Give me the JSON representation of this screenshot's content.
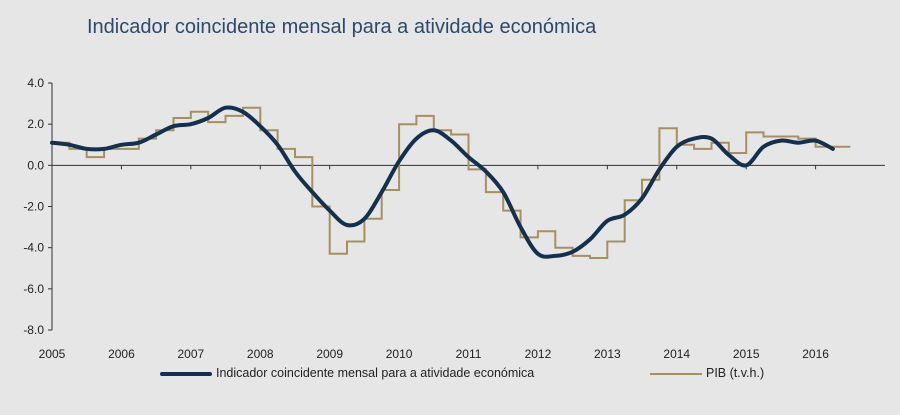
{
  "chart_data": {
    "type": "line",
    "title": "Indicador coincidente mensal para a atividade económica",
    "xlabel": "",
    "ylabel": "",
    "xlim": [
      2005,
      2017
    ],
    "ylim": [
      -8.0,
      4.0
    ],
    "ytick_labels": [
      "4.0",
      "2.0",
      "0.0",
      "-2.0",
      "-4.0",
      "-6.0",
      "-8.0"
    ],
    "ytick_values": [
      4,
      2,
      0,
      -2,
      -4,
      -6,
      -8
    ],
    "xtick_labels": [
      "2005",
      "2006",
      "2007",
      "2008",
      "2009",
      "2010",
      "2011",
      "2012",
      "2013",
      "2014",
      "2015",
      "2016"
    ],
    "xtick_values": [
      2005,
      2006,
      2007,
      2008,
      2009,
      2010,
      2011,
      2012,
      2013,
      2014,
      2015,
      2016
    ],
    "grid": false,
    "legend_position": "bottom",
    "colors": {
      "indicator": "#12304f",
      "pib": "#a8905c",
      "background": "#e6e6e6",
      "title": "#2b4a6b"
    },
    "series": [
      {
        "name": "Indicador coincidente mensal para a atividade económica",
        "style": "smooth",
        "x": [
          2005.0,
          2005.25,
          2005.5,
          2005.75,
          2006.0,
          2006.25,
          2006.5,
          2006.75,
          2007.0,
          2007.25,
          2007.5,
          2007.75,
          2008.0,
          2008.25,
          2008.5,
          2008.75,
          2009.0,
          2009.25,
          2009.5,
          2009.75,
          2010.0,
          2010.25,
          2010.5,
          2010.75,
          2011.0,
          2011.25,
          2011.5,
          2011.75,
          2012.0,
          2012.25,
          2012.5,
          2012.75,
          2013.0,
          2013.25,
          2013.5,
          2013.75,
          2014.0,
          2014.25,
          2014.5,
          2014.75,
          2015.0,
          2015.25,
          2015.5,
          2015.75,
          2016.0,
          2016.25
        ],
        "values": [
          1.1,
          1.0,
          0.8,
          0.8,
          1.0,
          1.1,
          1.5,
          1.9,
          2.0,
          2.3,
          2.8,
          2.6,
          1.9,
          1.0,
          -0.3,
          -1.3,
          -2.2,
          -2.9,
          -2.6,
          -1.3,
          0.2,
          1.3,
          1.7,
          1.2,
          0.4,
          -0.3,
          -1.3,
          -3.0,
          -4.3,
          -4.4,
          -4.2,
          -3.6,
          -2.7,
          -2.4,
          -1.6,
          -0.2,
          0.9,
          1.3,
          1.3,
          0.5,
          0.0,
          0.9,
          1.2,
          1.1,
          1.2,
          0.8
        ]
      },
      {
        "name": "PIB (t.v.h.)",
        "style": "step",
        "x": [
          2005.0,
          2005.25,
          2005.5,
          2005.75,
          2006.0,
          2006.25,
          2006.5,
          2006.75,
          2007.0,
          2007.25,
          2007.5,
          2007.75,
          2008.0,
          2008.25,
          2008.5,
          2008.75,
          2009.0,
          2009.25,
          2009.5,
          2009.75,
          2010.0,
          2010.25,
          2010.5,
          2010.75,
          2011.0,
          2011.25,
          2011.5,
          2011.75,
          2012.0,
          2012.25,
          2012.5,
          2012.75,
          2013.0,
          2013.25,
          2013.5,
          2013.75,
          2014.0,
          2014.25,
          2014.5,
          2014.75,
          2015.0,
          2015.25,
          2015.5,
          2015.75,
          2016.0,
          2016.25
        ],
        "values": [
          1.1,
          0.8,
          0.4,
          0.8,
          0.8,
          1.3,
          1.7,
          2.3,
          2.6,
          2.1,
          2.4,
          2.8,
          1.7,
          0.8,
          0.4,
          -2.0,
          -4.3,
          -3.7,
          -2.6,
          -1.2,
          2.0,
          2.4,
          1.7,
          1.5,
          -0.2,
          -1.3,
          -2.2,
          -3.5,
          -3.2,
          -4.0,
          -4.4,
          -4.5,
          -3.7,
          -1.7,
          -0.7,
          1.8,
          1.0,
          0.8,
          1.1,
          0.6,
          1.6,
          1.4,
          1.4,
          1.3,
          0.9,
          0.9
        ]
      }
    ]
  }
}
